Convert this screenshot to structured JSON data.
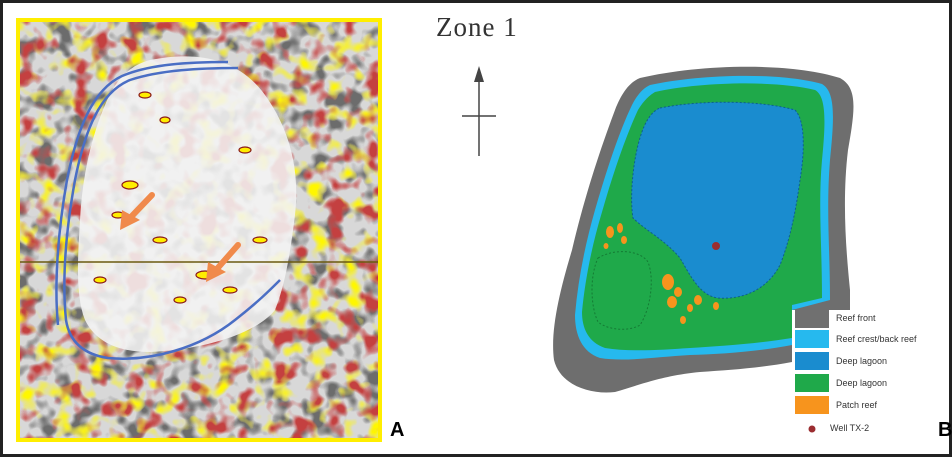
{
  "title": "Zone 1",
  "panel_a_label": "A",
  "panel_b_label": "B",
  "legend": {
    "items": [
      {
        "label": "Reef front",
        "color": "#707070"
      },
      {
        "label": "Reef crest/back reef",
        "color": "#26b9ee"
      },
      {
        "label": "Deep lagoon",
        "color": "#1a8ccf"
      },
      {
        "label": "Deep lagoon",
        "color": "#1fa94a"
      },
      {
        "label": "Patch reef",
        "color": "#f7941d"
      }
    ],
    "well_label": "Well TX-2",
    "well_color": "#9b2d30"
  },
  "colors": {
    "seismic_yellow": "#ffee00",
    "seismic_red": "#b22020",
    "outline_blue": "#4a6ec4",
    "arrow_orange": "#f08a4b"
  }
}
